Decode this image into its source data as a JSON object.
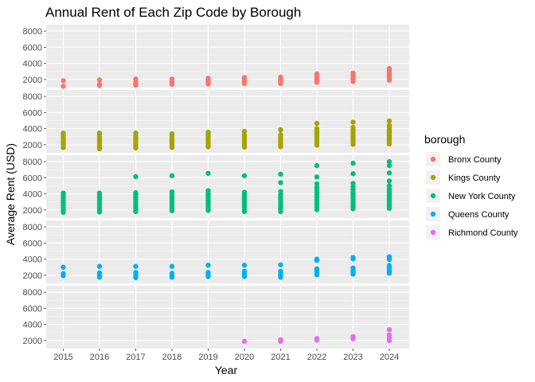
{
  "chart_data": {
    "type": "scatter",
    "title": "Annual Rent of Each Zip Code by Borough",
    "xlabel": "Year",
    "ylabel": "Average Rent (USD)",
    "x_ticks": [
      "2015",
      "2016",
      "2017",
      "2018",
      "2019",
      "2020",
      "2021",
      "2022",
      "2023",
      "2024"
    ],
    "y_ticks": [
      "2000",
      "4000",
      "6000",
      "8000"
    ],
    "ylim": [
      1000,
      8800
    ],
    "grid": true,
    "legend_title": "borough",
    "legend_position": "right",
    "facets": [
      {
        "name": "Bronx County",
        "color": "#F8766D",
        "points": {
          "2015": [
            1150,
            1850
          ],
          "2016": [
            1250,
            1400,
            1950
          ],
          "2017": [
            1300,
            1450,
            1650,
            2050
          ],
          "2018": [
            1400,
            1550,
            1750,
            2050
          ],
          "2019": [
            1450,
            1600,
            1750,
            1900,
            2150
          ],
          "2020": [
            1500,
            1650,
            1800,
            1950,
            2100,
            2250
          ],
          "2021": [
            1500,
            1650,
            1800,
            1950,
            2100,
            2300
          ],
          "2022": [
            1650,
            1850,
            2050,
            2250,
            2450,
            2700
          ],
          "2023": [
            1750,
            1950,
            2150,
            2350,
            2550,
            2800
          ],
          "2024": [
            1900,
            2100,
            2300,
            2500,
            2700,
            2900,
            3150,
            3350
          ]
        }
      },
      {
        "name": "Kings County",
        "color": "#A3A500",
        "points": {
          "2015": [
            1650,
            1900,
            2150,
            2400,
            2650,
            2900,
            3150,
            3450
          ],
          "2016": [
            1500,
            1750,
            2000,
            2250,
            2500,
            2750,
            3000,
            3250,
            3450
          ],
          "2017": [
            1600,
            1850,
            2100,
            2350,
            2600,
            2850,
            3100,
            3450
          ],
          "2018": [
            1650,
            1900,
            2150,
            2400,
            2650,
            2900,
            3150,
            3350
          ],
          "2019": [
            1750,
            2000,
            2250,
            2500,
            2750,
            3000,
            3250,
            3550
          ],
          "2020": [
            1700,
            1950,
            2200,
            2450,
            2700,
            2950,
            3200,
            3650
          ],
          "2021": [
            1750,
            2000,
            2250,
            2500,
            2750,
            3000,
            3250,
            3850
          ],
          "2022": [
            1950,
            2200,
            2450,
            2700,
            2950,
            3200,
            3450,
            3700,
            4000,
            4650
          ],
          "2023": [
            2050,
            2300,
            2550,
            2800,
            3050,
            3300,
            3550,
            3800,
            4150,
            4800
          ],
          "2024": [
            2100,
            2350,
            2600,
            2850,
            3100,
            3350,
            3600,
            3850,
            4150,
            4400,
            4950
          ]
        }
      },
      {
        "name": "New York County",
        "color": "#00BF7D",
        "points": {
          "2015": [
            1700,
            2000,
            2300,
            2600,
            2900,
            3200,
            3500,
            3800,
            4100
          ],
          "2016": [
            1750,
            2050,
            2350,
            2650,
            2950,
            3250,
            3550,
            3850,
            4100
          ],
          "2017": [
            1800,
            2100,
            2400,
            2700,
            3000,
            3300,
            3600,
            3900,
            4150,
            6150
          ],
          "2018": [
            1900,
            2200,
            2500,
            2800,
            3100,
            3400,
            3700,
            4000,
            4250,
            6250
          ],
          "2019": [
            1950,
            2250,
            2550,
            2850,
            3150,
            3450,
            3750,
            4050,
            4400,
            6550
          ],
          "2020": [
            1800,
            2100,
            2400,
            2700,
            3000,
            3300,
            3600,
            3900,
            4200,
            6250
          ],
          "2021": [
            1800,
            2100,
            2400,
            2700,
            3000,
            3300,
            3600,
            3900,
            4300,
            5400,
            6450
          ],
          "2022": [
            2050,
            2350,
            2650,
            2950,
            3250,
            3550,
            3850,
            4150,
            4450,
            4800,
            5250,
            6100,
            7500
          ],
          "2023": [
            2150,
            2450,
            2750,
            3050,
            3350,
            3650,
            3950,
            4250,
            4550,
            4900,
            5300,
            6500,
            7800
          ],
          "2024": [
            2200,
            2500,
            2800,
            3100,
            3400,
            3700,
            4000,
            4300,
            4600,
            5000,
            5600,
            6600,
            7500,
            8000
          ]
        }
      },
      {
        "name": "Queens County",
        "color": "#00B0F6",
        "points": {
          "2015": [
            1950,
            2200,
            3000
          ],
          "2016": [
            1750,
            2000,
            2300,
            3100
          ],
          "2017": [
            1700,
            1950,
            2200,
            2350,
            3100
          ],
          "2018": [
            1750,
            2000,
            2250,
            3100
          ],
          "2019": [
            1850,
            2100,
            2350,
            3250
          ],
          "2020": [
            1850,
            2100,
            2300,
            2500,
            3250
          ],
          "2021": [
            1750,
            2000,
            2250,
            2500,
            3300
          ],
          "2022": [
            2050,
            2300,
            2550,
            2800,
            3850,
            4000
          ],
          "2023": [
            2150,
            2400,
            2650,
            2900,
            4050,
            4200
          ],
          "2024": [
            2250,
            2500,
            2750,
            3000,
            3200,
            3950,
            4200,
            4300
          ]
        }
      },
      {
        "name": "Richmond County",
        "color": "#E76BF3",
        "points": {
          "2020": [
            1900
          ],
          "2021": [
            1900,
            2000,
            2100
          ],
          "2022": [
            2050,
            2150,
            2250
          ],
          "2023": [
            2200,
            2350,
            2500
          ],
          "2024": [
            2000,
            2350,
            2700,
            3350
          ]
        }
      }
    ]
  }
}
